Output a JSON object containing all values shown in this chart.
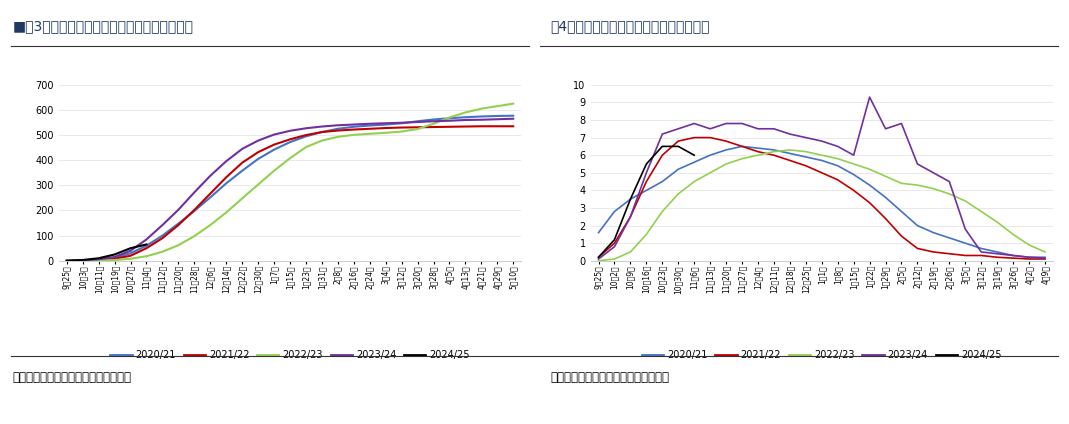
{
  "fig3_title": "■图3：新年度新疆棉累计加工量统计（万吨）",
  "fig4_title": "图4：新年度新疆棉日加工量统计（万吨）",
  "source_text": "数据来源：銘河期货，中国棉花信息网",
  "colors": {
    "2020/21": "#4472C4",
    "2021/22": "#C00000",
    "2022/23": "#92D050",
    "2023/24": "#7030A0",
    "2024/25": "#000000"
  },
  "fig3_xlabels": [
    "9月25日",
    "10月3日",
    "10月11日",
    "10月19日",
    "10月27日",
    "11月4日",
    "11月12日",
    "11月20日",
    "11月28日",
    "12月6日",
    "12月14日",
    "12月22日",
    "12月30日",
    "1月7日",
    "1月15日",
    "1月23日",
    "1月31日",
    "2月8日",
    "2月16日",
    "2月24日",
    "3月4日",
    "3月12日",
    "3月20日",
    "3月28日",
    "4月5日",
    "4月13日",
    "4月21日",
    "4月29日",
    "5月10日"
  ],
  "fig4_xlabels": [
    "9月25日",
    "10月2日",
    "10月9日",
    "10月16日",
    "10月23日",
    "10月30日",
    "11月6日",
    "11月13日",
    "11月20日",
    "11月27日",
    "12月4日",
    "12月11日",
    "12月18日",
    "12月25日",
    "1月1日",
    "1月8日",
    "1月15日",
    "1月22日",
    "1月29日",
    "2月5日",
    "2月12日",
    "2月19日",
    "2月26日",
    "3月5日",
    "3月12日",
    "3月19日",
    "3月26日",
    "4月2日",
    "4月9日"
  ],
  "fig3_ylim": [
    0,
    700
  ],
  "fig3_yticks": [
    0,
    100,
    200,
    300,
    400,
    500,
    600,
    700
  ],
  "fig4_ylim": [
    0,
    10
  ],
  "fig4_yticks": [
    0,
    1,
    2,
    3,
    4,
    5,
    6,
    7,
    8,
    9,
    10
  ],
  "background_color": "#FFFFFF",
  "series_names": [
    "2020/21",
    "2021/22",
    "2022/23",
    "2023/24",
    "2024/25"
  ],
  "c3_2020": [
    0,
    2,
    5,
    12,
    30,
    60,
    100,
    148,
    198,
    252,
    308,
    358,
    405,
    442,
    472,
    495,
    512,
    525,
    533,
    538,
    542,
    547,
    555,
    562,
    567,
    571,
    574,
    576,
    577
  ],
  "c3_2021": [
    0,
    1,
    3,
    8,
    20,
    50,
    90,
    142,
    202,
    267,
    332,
    390,
    432,
    462,
    483,
    500,
    512,
    518,
    522,
    525,
    528,
    530,
    531,
    532,
    533,
    534,
    535,
    535,
    535
  ],
  "c3_2022": [
    0,
    0,
    1,
    3,
    8,
    18,
    36,
    62,
    98,
    142,
    192,
    248,
    303,
    358,
    408,
    452,
    478,
    493,
    501,
    505,
    509,
    514,
    524,
    545,
    570,
    590,
    605,
    615,
    625
  ],
  "c3_2023": [
    0,
    2,
    6,
    15,
    40,
    85,
    142,
    203,
    272,
    338,
    396,
    445,
    478,
    502,
    517,
    527,
    534,
    539,
    542,
    545,
    547,
    549,
    552,
    555,
    557,
    560,
    561,
    563,
    565
  ],
  "c3_2024_vals": [
    0,
    3,
    10,
    25,
    50,
    65
  ],
  "c3_2024_idx": [
    0,
    1,
    2,
    3,
    4,
    5
  ],
  "d4_2020": [
    1.6,
    2.8,
    3.5,
    4.0,
    4.5,
    5.2,
    5.6,
    6.0,
    6.3,
    6.5,
    6.4,
    6.3,
    6.1,
    5.9,
    5.7,
    5.4,
    4.9,
    4.3,
    3.6,
    2.8,
    2.0,
    1.6,
    1.3,
    1.0,
    0.7,
    0.5,
    0.3,
    0.2,
    0.2
  ],
  "d4_2021": [
    0.2,
    1.0,
    2.5,
    4.5,
    6.0,
    6.8,
    7.0,
    7.0,
    6.8,
    6.5,
    6.2,
    6.0,
    5.7,
    5.4,
    5.0,
    4.6,
    4.0,
    3.3,
    2.4,
    1.4,
    0.7,
    0.5,
    0.4,
    0.3,
    0.3,
    0.2,
    0.15,
    0.1,
    0.1
  ],
  "d4_2022": [
    0.0,
    0.1,
    0.5,
    1.5,
    2.8,
    3.8,
    4.5,
    5.0,
    5.5,
    5.8,
    6.0,
    6.2,
    6.3,
    6.2,
    6.0,
    5.8,
    5.5,
    5.2,
    4.8,
    4.4,
    4.3,
    4.1,
    3.8,
    3.4,
    2.8,
    2.2,
    1.5,
    0.9,
    0.5
  ],
  "d4_2023": [
    0.1,
    0.8,
    2.5,
    5.0,
    7.2,
    7.5,
    7.8,
    7.5,
    7.8,
    7.8,
    7.5,
    7.5,
    7.2,
    7.0,
    6.8,
    6.5,
    6.0,
    9.3,
    7.5,
    7.8,
    5.5,
    5.0,
    4.5,
    1.8,
    0.5,
    0.4,
    0.3,
    0.2,
    0.15
  ],
  "d4_2024_vals": [
    0.2,
    1.2,
    3.5,
    5.5,
    6.5,
    6.5,
    6.0
  ],
  "d4_2024_idx": [
    0,
    1,
    2,
    3,
    4,
    5,
    6
  ]
}
